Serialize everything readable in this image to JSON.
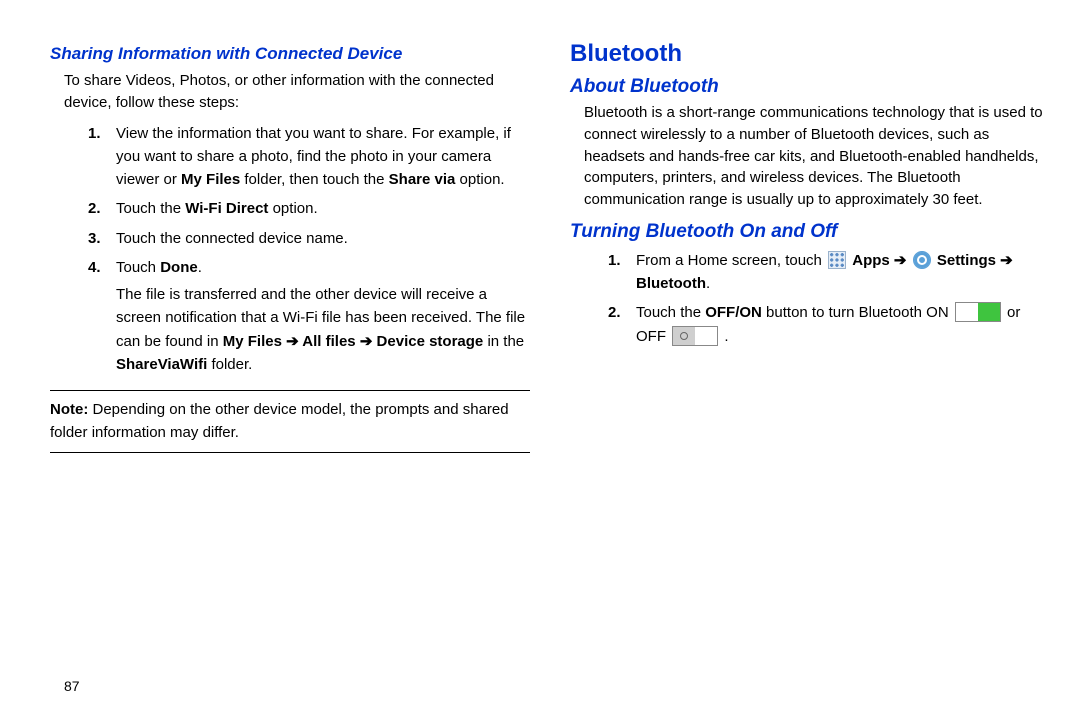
{
  "left": {
    "heading": "Sharing Information with Connected Device",
    "intro": "To share Videos, Photos, or other information with the connected device, follow these steps:",
    "steps": [
      {
        "num": "1.",
        "parts": [
          {
            "t": "View the information that you want to share. For example, if you want to share a photo, find the photo in your camera viewer or "
          },
          {
            "t": "My Files",
            "b": true
          },
          {
            "t": " folder, then touch the "
          },
          {
            "t": "Share via",
            "b": true
          },
          {
            "t": " option."
          }
        ]
      },
      {
        "num": "2.",
        "parts": [
          {
            "t": "Touch the "
          },
          {
            "t": "Wi-Fi Direct",
            "b": true
          },
          {
            "t": " option."
          }
        ]
      },
      {
        "num": "3.",
        "parts": [
          {
            "t": "Touch the connected device name."
          }
        ]
      },
      {
        "num": "4.",
        "parts": [
          {
            "t": "Touch "
          },
          {
            "t": "Done",
            "b": true
          },
          {
            "t": "."
          }
        ],
        "sub": [
          {
            "t": "The file is transferred and the other device will receive a screen notification that a Wi-Fi file has been received. The file can be found in "
          },
          {
            "t": "My Files",
            "b": true
          },
          {
            "t": " ",
            "b": true
          },
          {
            "t": "➔ All files ➔ Device storage",
            "b": true
          },
          {
            "t": " in the "
          },
          {
            "t": "ShareViaWifi",
            "b": true
          },
          {
            "t": " folder."
          }
        ]
      }
    ],
    "note_label": "Note:",
    "note_body": " Depending on the other device model, the prompts and shared folder information may differ."
  },
  "right": {
    "h2": "Bluetooth",
    "about_h": "About Bluetooth",
    "about_body": "Bluetooth is a short-range communications technology that is used to connect wirelessly to a number of Bluetooth devices, such as headsets and hands-free car kits, and Bluetooth-enabled handhelds, computers, printers, and wireless devices. The Bluetooth communication range is usually up to approximately 30 feet.",
    "turn_h": "Turning Bluetooth On and Off",
    "steps": [
      {
        "num": "1.",
        "parts": [
          {
            "t": "From a Home screen, touch "
          },
          {
            "icon": "apps"
          },
          {
            "t": " "
          },
          {
            "t": "Apps",
            "b": true
          },
          {
            "t": " "
          },
          {
            "t": "➔",
            "b": true
          },
          {
            "t": " "
          },
          {
            "icon": "settings"
          },
          {
            "t": " "
          },
          {
            "t": "Settings ➔ Bluetooth",
            "b": true
          },
          {
            "t": "."
          }
        ]
      },
      {
        "num": "2.",
        "parts": [
          {
            "t": "Touch the "
          },
          {
            "t": "OFF/ON",
            "b": true
          },
          {
            "t": " button to turn Bluetooth ON "
          },
          {
            "icon": "toggle-on"
          },
          {
            "t": " or OFF "
          },
          {
            "icon": "toggle-off"
          },
          {
            "t": " ."
          }
        ]
      }
    ]
  },
  "pagenum": "87"
}
